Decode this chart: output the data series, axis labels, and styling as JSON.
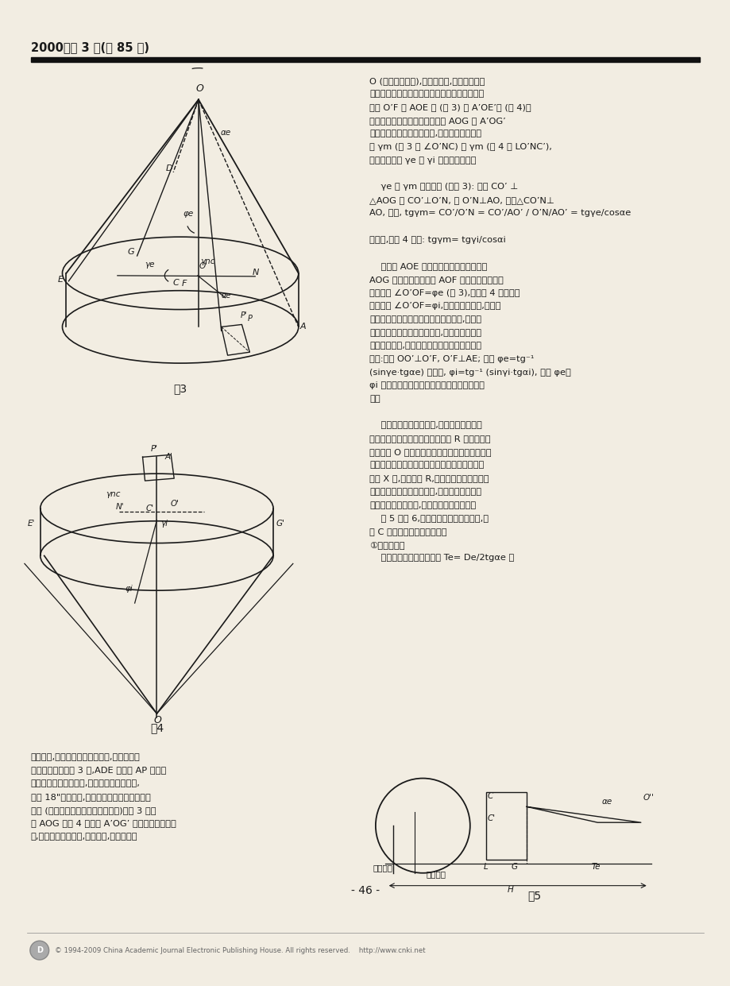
{
  "page_bg": "#e8e4d8",
  "paper_bg": "#f2ede2",
  "text_color": "#1a1a1a",
  "header_text": "2000年第 3 期(总 85 期)",
  "header_bar_color": "#111111",
  "footer_text": "© 1994-2009 China Academic Journal Electronic Publishing House. All rights reserved.    http://www.cnki.net",
  "page_number": "- 46 -",
  "fig3_caption": "图3",
  "fig4_caption": "图4",
  "fig5_caption": "图5",
  "right_lines": [
    "O (即零度前刀面),为获得前角,只有使砂轮磨",
    "削平面绕刀口直线旋转而构成平行于圆锥轴线并",
    "移距 O’F 的 AOE 面 (图 3) 和 A’OE’面 (图 4)。",
    "该面与过刀口直线的圆锥轴平面 AOG 和 A’OG’",
    "所构成的两面角的法截面角,即为刀刀的法向前",
    "角 γm (图 3 的 ∠O’NC) 和 γm (图 4 的 LO’NC’),",
    "而其端截面角 γe 或 γi 即为端面前角。",
    "",
    "    γe 和 γm 的关系为 (见图 3): 因为 CO’ ⊥",
    "△AOG 即 CO’⊥O’N, 而 O’N⊥AO, 所以△CO’N⊥",
    "AO, 于是, tgγm= CO’/O’N = CO’/AO’ / O’N/AO’ = tgγe/cosαe",
    "",
    "同样地,由图 4 可得: tgγm= tgγi/cosαi",
    "",
    "    前刀面 AOE 与过刀口直径的圆锥轴平面",
    "AOG 所构成的两面角被 AOF 的垂直平面所截得",
    "的截面角 ∠O’OF=φe (图 3),以及图 4 中相类似",
    "的截面角 ∠O’OF=φi,即为刀盘刀磨时,主轴手",
    "动的倾斜角。当主轴手动了此倾斜角后,砂轮的",
    "磨削平面便置于刀片前刀面上,于是也就保证了",
    "刀片的直线性,刀盘主轴倾斜角与端面前角间关",
    "系为:因为 OO’⊥O’F, O’F⊥AE; 所以 φe=tg⁻¹",
    "(sinγe·tgαe) 同样地, φi=tg⁻¹ (sinγi·tgαi), 式中 φe、",
    "φi 为刀磨外、内刀片时安装铳刀盘的主轴倾斜",
    "角。",
    "",
    "    对砂轮的磨削平面而言,砂轮的磨削平面是",
    "由带金刺笔的、能升降调节的刻度 R 来控制。以",
    "刻度尺为 O 时修正的平面作为标准位置。金刺笔",
    "用专门校对零位规来安装。当计算出砂轮垂直移",
    "动量 X 后,调整刻度 R,即可带着修整好的砂轮",
    "平面置于所求的磨削平面内,而被磨刀盘的前刀",
    "面旋近砂轮磨削平面,即能磨出所需的前角。",
    "    图 5 和图 6,为重磨外、内刀片的图解,其",
    "中 C 是刀盘倾斜的回转中心。",
    "①重磨外刀片",
    "    外刀刀尖顶面到锥顶距离 Te= De/2tgαe 。"
  ],
  "left_bottom_lines": [
    "成的刀线,即为某一双曲线的一段,都将使切削",
    "刀失去直线性。图 3 中,ADE 截面的 AP 线就失",
    "去直线性而为曲线形状,为使刀刀保持直线性,",
    "重磨 18\"铳刀盘时,砂轮的磨削平面应包含刀口",
    "直线 (即与刀口直线重合的圆锥母线)。图 3 中所",
    "示 AOG 和图 4 中所示 A’OG’ 平面所形成的前刀",
    "面,因包含了锥面轴线,即轴平面,故使前角为"
  ]
}
